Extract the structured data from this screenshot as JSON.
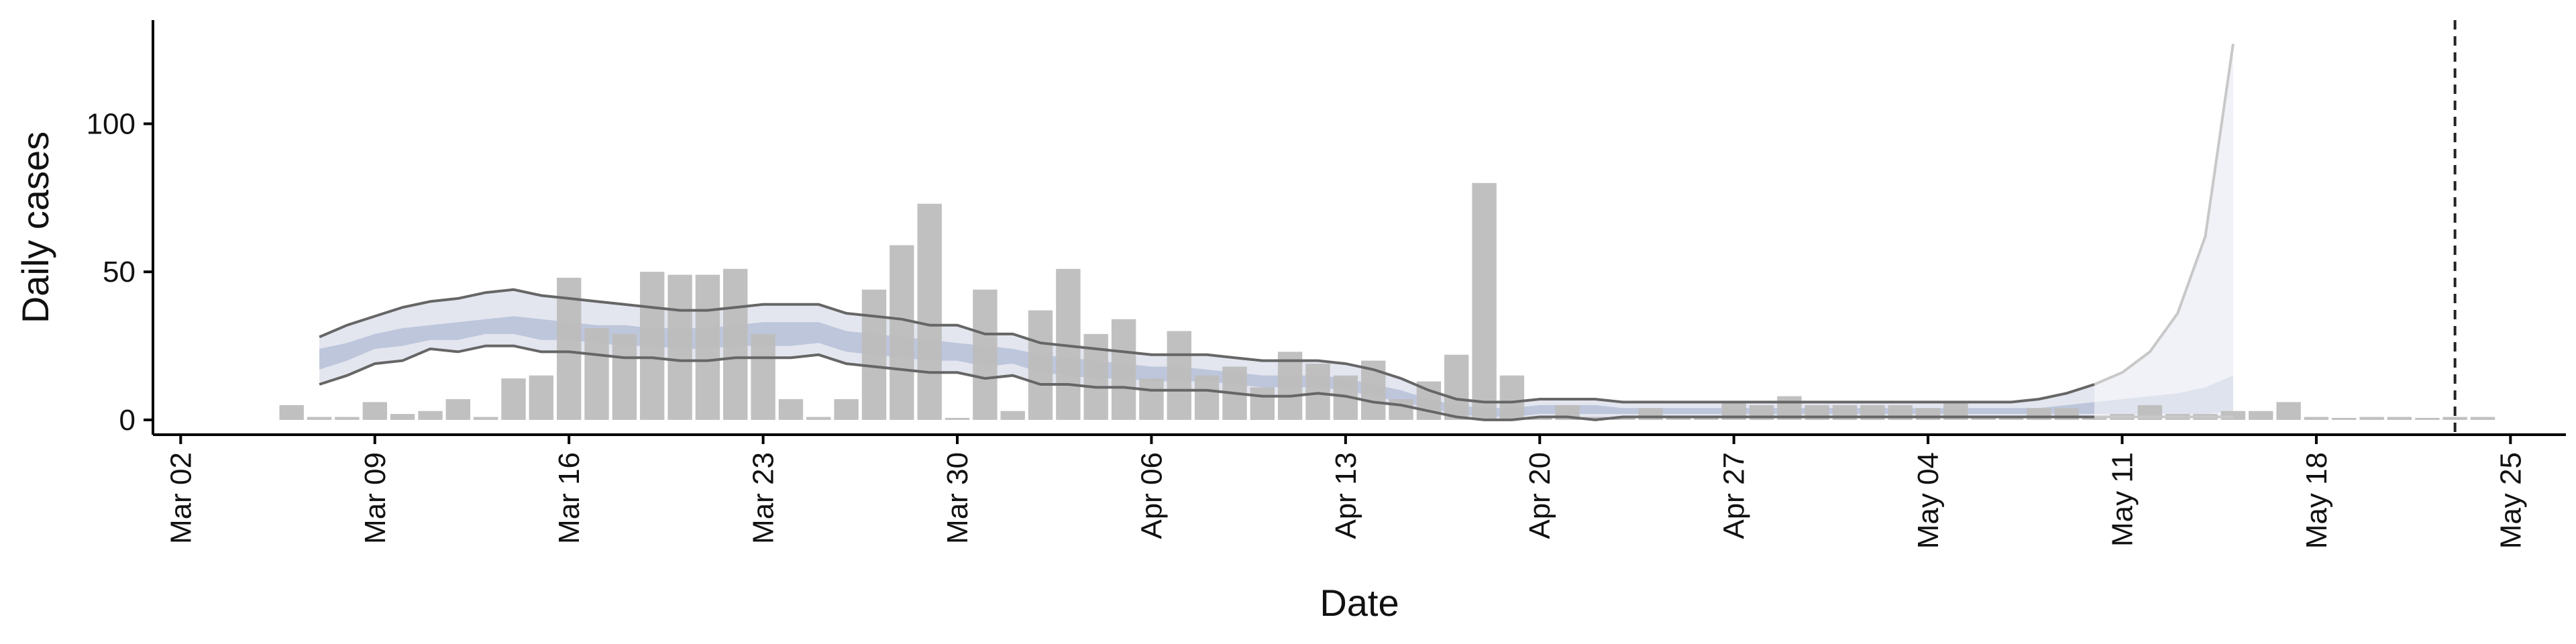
{
  "chart_data": {
    "type": "bar",
    "title": "",
    "xlabel": "Date",
    "ylabel": "Daily cases",
    "x_ticks": [
      "Mar 02",
      "Mar 09",
      "Mar 16",
      "Mar 23",
      "Mar 30",
      "Apr 06",
      "Apr 13",
      "Apr 20",
      "Apr 27",
      "May 04",
      "May 11",
      "May 18",
      "May 25"
    ],
    "y_ticks": [
      0,
      50,
      100
    ],
    "xlim": [
      "2020-03-01",
      "2020-05-27"
    ],
    "ylim": [
      -5,
      135
    ],
    "grid": false,
    "legend": "none",
    "bar_start": "2020-03-06",
    "bar_values": [
      5,
      1,
      1,
      6,
      2,
      3,
      7,
      1,
      14,
      15,
      48,
      31,
      29,
      50,
      49,
      49,
      51,
      29,
      7,
      1,
      7,
      44,
      59,
      73,
      0,
      44,
      3,
      37,
      51,
      29,
      34,
      14,
      30,
      15,
      18,
      11,
      23,
      19,
      15,
      20,
      7,
      13,
      22,
      80,
      15,
      0,
      5,
      1,
      1,
      4,
      1,
      1,
      6,
      5,
      8,
      5,
      5,
      5,
      5,
      4,
      6,
      1,
      1,
      4,
      4,
      1,
      2,
      5,
      2,
      2,
      3,
      3,
      6,
      1,
      0,
      1,
      1,
      0,
      1,
      1
    ],
    "band_start": "2020-03-07",
    "outer_upper": [
      28,
      32,
      35,
      38,
      40,
      41,
      43,
      44,
      42,
      41,
      40,
      39,
      38,
      37,
      37,
      38,
      39,
      39,
      39,
      36,
      35,
      34,
      32,
      32,
      29,
      29,
      26,
      25,
      24,
      23,
      22,
      22,
      22,
      21,
      20,
      20,
      20,
      19,
      17,
      14,
      10,
      7,
      6,
      6,
      7,
      7,
      7,
      6,
      6,
      6,
      6,
      6,
      6,
      6,
      6,
      6,
      6,
      6,
      6,
      6,
      6,
      6,
      7,
      9,
      12,
      16,
      23,
      36,
      62,
      127
    ],
    "outer_lower": [
      12,
      15,
      19,
      20,
      24,
      23,
      25,
      25,
      23,
      23,
      22,
      21,
      21,
      20,
      20,
      21,
      21,
      21,
      22,
      19,
      18,
      17,
      16,
      16,
      14,
      15,
      12,
      12,
      11,
      11,
      10,
      10,
      10,
      9,
      8,
      8,
      9,
      8,
      6,
      5,
      3,
      1,
      0,
      0,
      1,
      1,
      0,
      1,
      1,
      1,
      1,
      1,
      1,
      1,
      1,
      1,
      1,
      1,
      1,
      1,
      1,
      1,
      1,
      1,
      1,
      1,
      1,
      1,
      1,
      1
    ],
    "inner_upper": [
      24,
      26,
      29,
      31,
      32,
      33,
      34,
      35,
      34,
      33,
      32,
      32,
      31,
      31,
      31,
      32,
      33,
      33,
      33,
      30,
      29,
      28,
      27,
      26,
      25,
      24,
      22,
      21,
      20,
      19,
      18,
      18,
      17,
      16,
      15,
      15,
      15,
      14,
      12,
      10,
      7,
      5,
      4,
      4,
      5,
      5,
      5,
      4,
      4,
      4,
      4,
      4,
      4,
      4,
      4,
      4,
      4,
      4,
      4,
      4,
      4,
      4,
      4,
      5,
      6,
      7,
      8,
      9,
      11,
      15
    ],
    "inner_lower": [
      17,
      20,
      24,
      25,
      27,
      27,
      29,
      29,
      27,
      27,
      26,
      25,
      25,
      24,
      24,
      25,
      25,
      25,
      26,
      23,
      22,
      21,
      20,
      20,
      18,
      19,
      16,
      15,
      14,
      14,
      13,
      13,
      13,
      12,
      11,
      11,
      11,
      10,
      8,
      6,
      4,
      2,
      1,
      1,
      2,
      2,
      2,
      2,
      2,
      2,
      2,
      2,
      2,
      2,
      2,
      2,
      2,
      2,
      2,
      2,
      2,
      2,
      2,
      2,
      2,
      2,
      2,
      2,
      2,
      3
    ],
    "reference_line": "2020-05-23",
    "colors": {
      "bars": "#bdbdbd",
      "outer_band": "#e3e6ef",
      "inner_band": "#b8c2d8",
      "band_edges": "#666666",
      "forecast_band": "#f1f2f7",
      "forecast_edge": "#c8c8c8",
      "reference_line": "#222222"
    }
  }
}
